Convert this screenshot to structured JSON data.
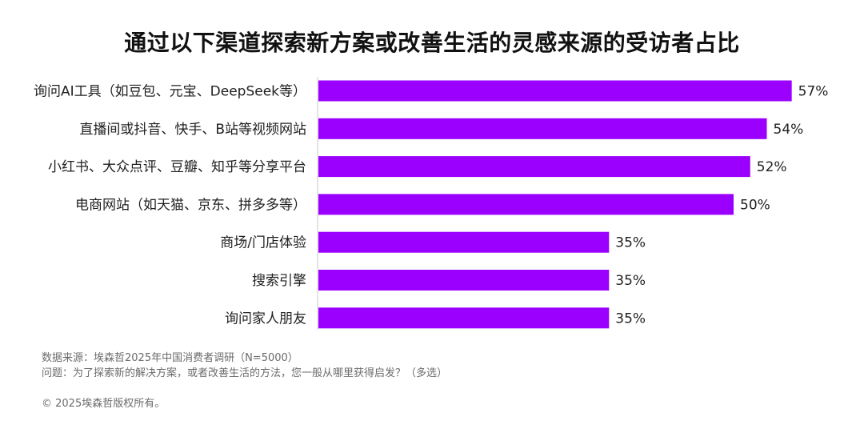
{
  "chart_data": {
    "type": "bar",
    "orientation": "horizontal",
    "title": "通过以下渠道探索新方案或改善生活的灵感来源的受访者占比",
    "categories": [
      "询问AI工具（如豆包、元宝、DeepSeek等）",
      "直播间或抖音、快手、B站等视频网站",
      "小红书、大众点评、豆瓣、知乎等分享平台",
      "电商网站（如天猫、京东、拼多多等）",
      "商场/门店体验",
      "搜索引擎",
      "询问家人朋友"
    ],
    "values": [
      57,
      54,
      52,
      50,
      35,
      35,
      35
    ],
    "value_labels": [
      "57%",
      "54%",
      "52%",
      "50%",
      "35%",
      "35%",
      "35%"
    ],
    "xlim": [
      0,
      65
    ],
    "grid": false,
    "bar_color": "#9b00ff"
  },
  "footnotes": {
    "source": "数据来源：埃森哲2025年中国消费者调研（N=5000）",
    "question": "问题：为了探索新的解决方案，或者改善生活的方法，您一般从哪里获得启发？（多选）",
    "copyright": "© 2025埃森哲版权所有。"
  }
}
